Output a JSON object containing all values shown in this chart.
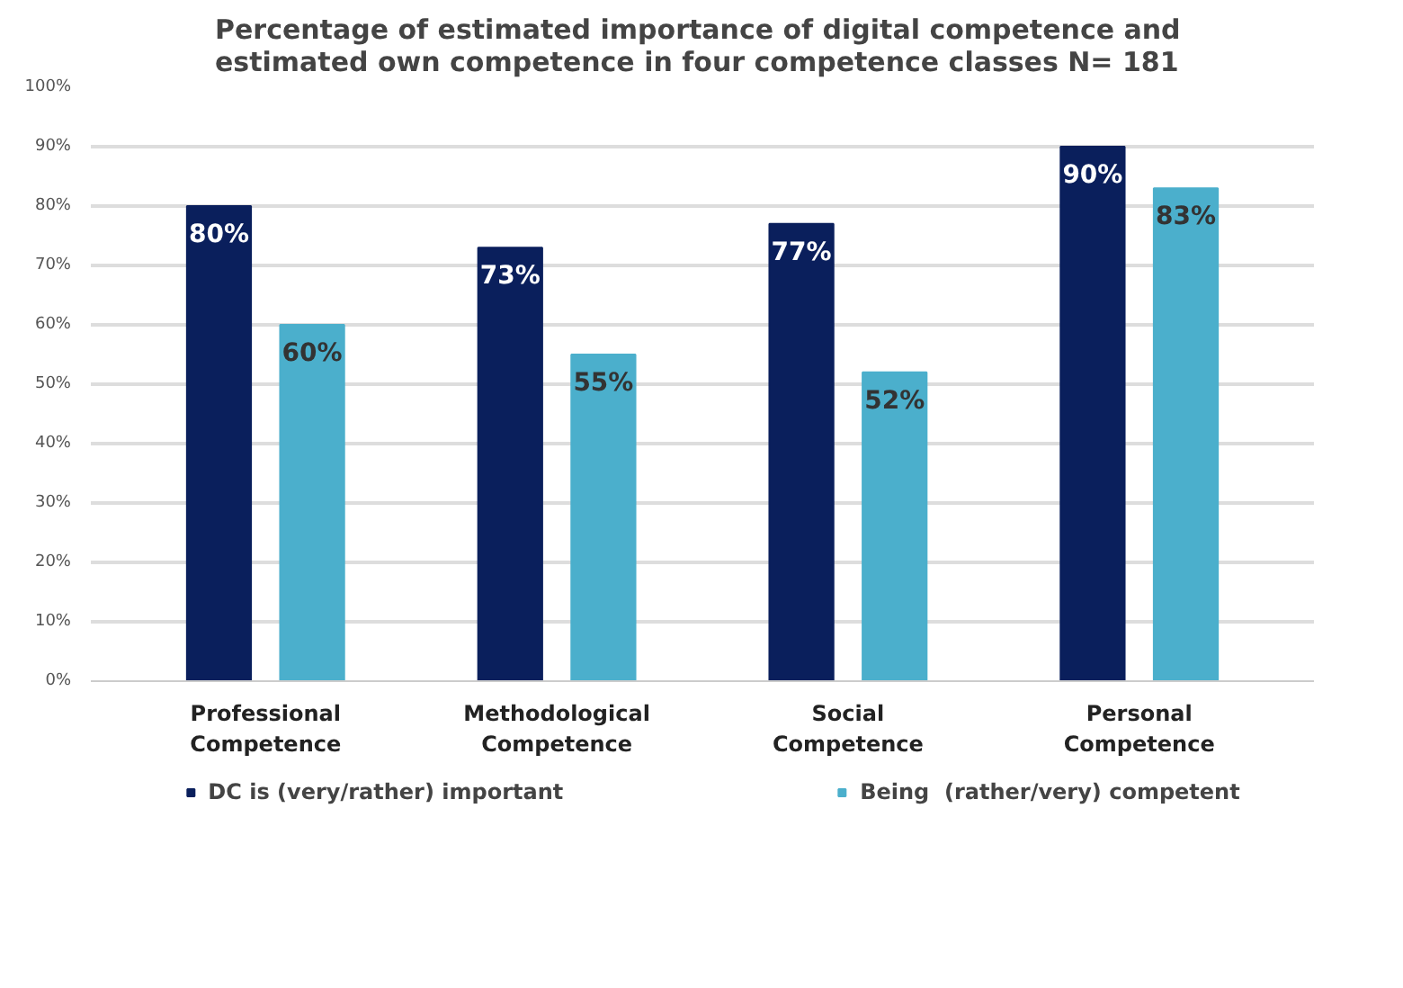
{
  "chart_data": {
    "type": "bar",
    "title": "Percentage of  estimated importance of digital competence and estimated own competence in four competence classes N= 181",
    "categories": [
      "Professional Competence",
      "Methodological Competence",
      "Social Competence",
      "Personal Competence"
    ],
    "series": [
      {
        "name": "DC is (very/rather) important",
        "color": "#0a1f5c",
        "values": [
          80,
          73,
          77,
          90
        ],
        "value_labels": [
          "80%",
          "73%",
          "77%",
          "90%"
        ]
      },
      {
        "name": "Being  (rather/very) competent",
        "color": "#4bafcc",
        "values": [
          60,
          55,
          52,
          83
        ],
        "value_labels": [
          "60%",
          "55%",
          "52%",
          "83%"
        ]
      }
    ],
    "ylim": [
      0,
      100
    ],
    "yticks": [
      {
        "value": 0,
        "label": "0%"
      },
      {
        "value": 10,
        "label": "10%"
      },
      {
        "value": 20,
        "label": "20%"
      },
      {
        "value": 30,
        "label": "30%"
      },
      {
        "value": 40,
        "label": "40%"
      },
      {
        "value": 50,
        "label": "50%"
      },
      {
        "value": 60,
        "label": "60%"
      },
      {
        "value": 70,
        "label": "70%"
      },
      {
        "value": 80,
        "label": "80%"
      },
      {
        "value": 90,
        "label": "90%"
      },
      {
        "value": 100,
        "label": "100%"
      }
    ],
    "grid": "y",
    "legend": "bottom"
  }
}
